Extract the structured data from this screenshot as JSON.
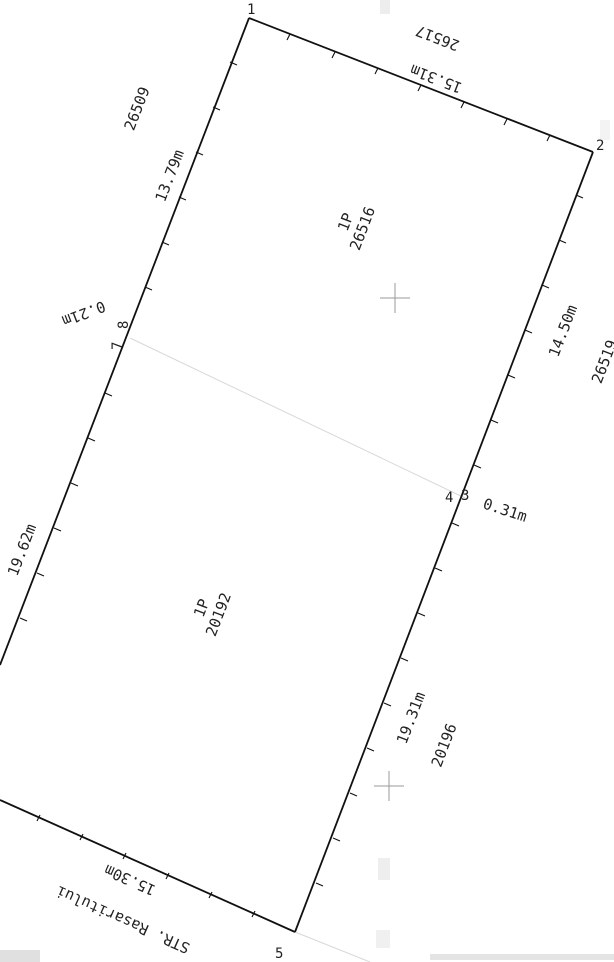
{
  "points": {
    "p1": "1",
    "p2": "2",
    "p3": "3",
    "p4": "4",
    "p5": "5",
    "p7": "7",
    "p8": "8"
  },
  "measurements": {
    "top": "15.31m",
    "upper_left": "13.79m",
    "offset_left": "0.21m",
    "upper_right": "14.50m",
    "offset_right": "0.31m",
    "lower_left": "19.62m",
    "lower_right": "19.31m",
    "bottom": "15.30m"
  },
  "parcels": {
    "upper": {
      "code": "1P",
      "number": "26516"
    },
    "lower": {
      "code": "1P",
      "number": "20192"
    }
  },
  "neighbors": {
    "top": "26517",
    "upper_left": "26509",
    "right": "26519",
    "lower_right": "20196"
  },
  "street": "STR. Rasaritului"
}
